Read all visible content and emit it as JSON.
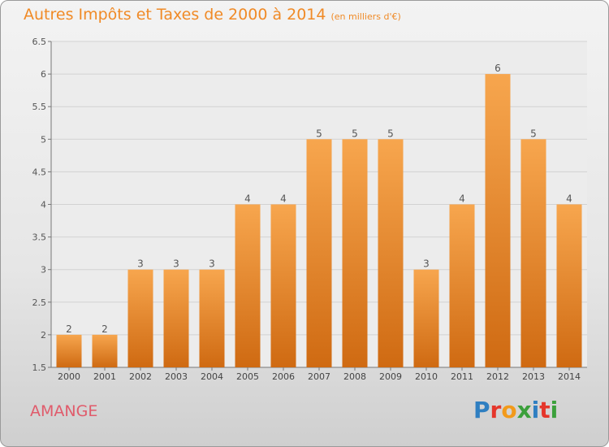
{
  "title": {
    "main": "Autres Impôts et Taxes de 2000 à 2014",
    "unit": "(en milliers d'€)"
  },
  "commune": "AMANGE",
  "logo_text": "Proxiti",
  "colors": {
    "title": "#f08a26",
    "commune": "#e05b6b",
    "bar_top": "#f7a64e",
    "bar_bottom": "#cf6a12",
    "logo": [
      "#2f7fc1",
      "#e5362b",
      "#f29a1b",
      "#3ba03b",
      "#2f7fc1",
      "#e5362b",
      "#3ba03b"
    ]
  },
  "chart_data": {
    "type": "bar",
    "categories": [
      "2000",
      "2001",
      "2002",
      "2003",
      "2004",
      "2005",
      "2006",
      "2007",
      "2008",
      "2009",
      "2010",
      "2011",
      "2012",
      "2013",
      "2014"
    ],
    "values": [
      2,
      2,
      3,
      3,
      3,
      4,
      4,
      5,
      5,
      5,
      3,
      4,
      6,
      5,
      4
    ],
    "value_labels": [
      "2",
      "2",
      "3",
      "3",
      "3",
      "4",
      "4",
      "5",
      "5",
      "5",
      "3",
      "4",
      "6",
      "5",
      "4"
    ],
    "yticks": [
      "1.5",
      "2",
      "2.5",
      "3",
      "3.5",
      "4",
      "4.5",
      "5",
      "5.5",
      "6",
      "6.5"
    ],
    "ylim": [
      1.5,
      6.5
    ],
    "grid": true,
    "title": "Autres Impôts et Taxes de 2000 à 2014",
    "xlabel": "",
    "ylabel": ""
  }
}
